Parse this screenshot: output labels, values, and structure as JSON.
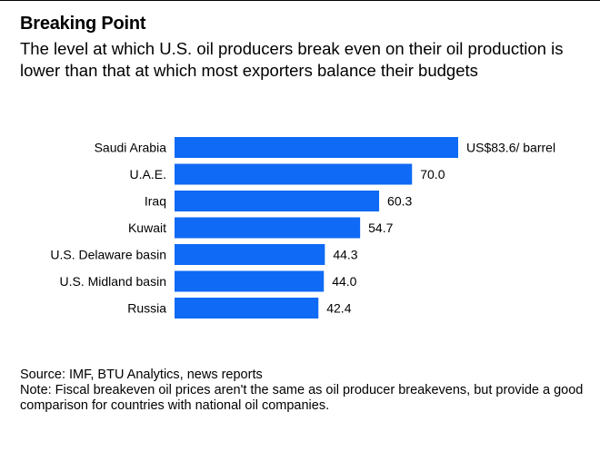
{
  "title": "Breaking Point",
  "subtitle": "The level at which U.S. oil producers break even on their oil production is lower than that at which most exporters balance their budgets",
  "chart_data": {
    "type": "bar",
    "orientation": "horizontal",
    "categories": [
      "Saudi Arabia",
      "U.A.E.",
      "Iraq",
      "Kuwait",
      "U.S. Delaware basin",
      "U.S. Midland basin",
      "Russia"
    ],
    "values": [
      83.6,
      70.0,
      60.3,
      54.7,
      44.3,
      44.0,
      42.4
    ],
    "value_labels": [
      "US$83.6/ barrel",
      "70.0",
      "60.3",
      "54.7",
      "44.3",
      "44.0",
      "42.4"
    ],
    "unit": "US$ / barrel",
    "xlim": [
      0,
      83.6
    ],
    "bar_color": "#0f6af5",
    "grid": false,
    "legend": "none"
  },
  "footer": {
    "source": "Source: IMF, BTU Analytics, news reports",
    "note": "Note: Fiscal breakeven oil prices aren't the same as oil producer breakevens, but provide a good comparison for countries with national oil companies."
  }
}
